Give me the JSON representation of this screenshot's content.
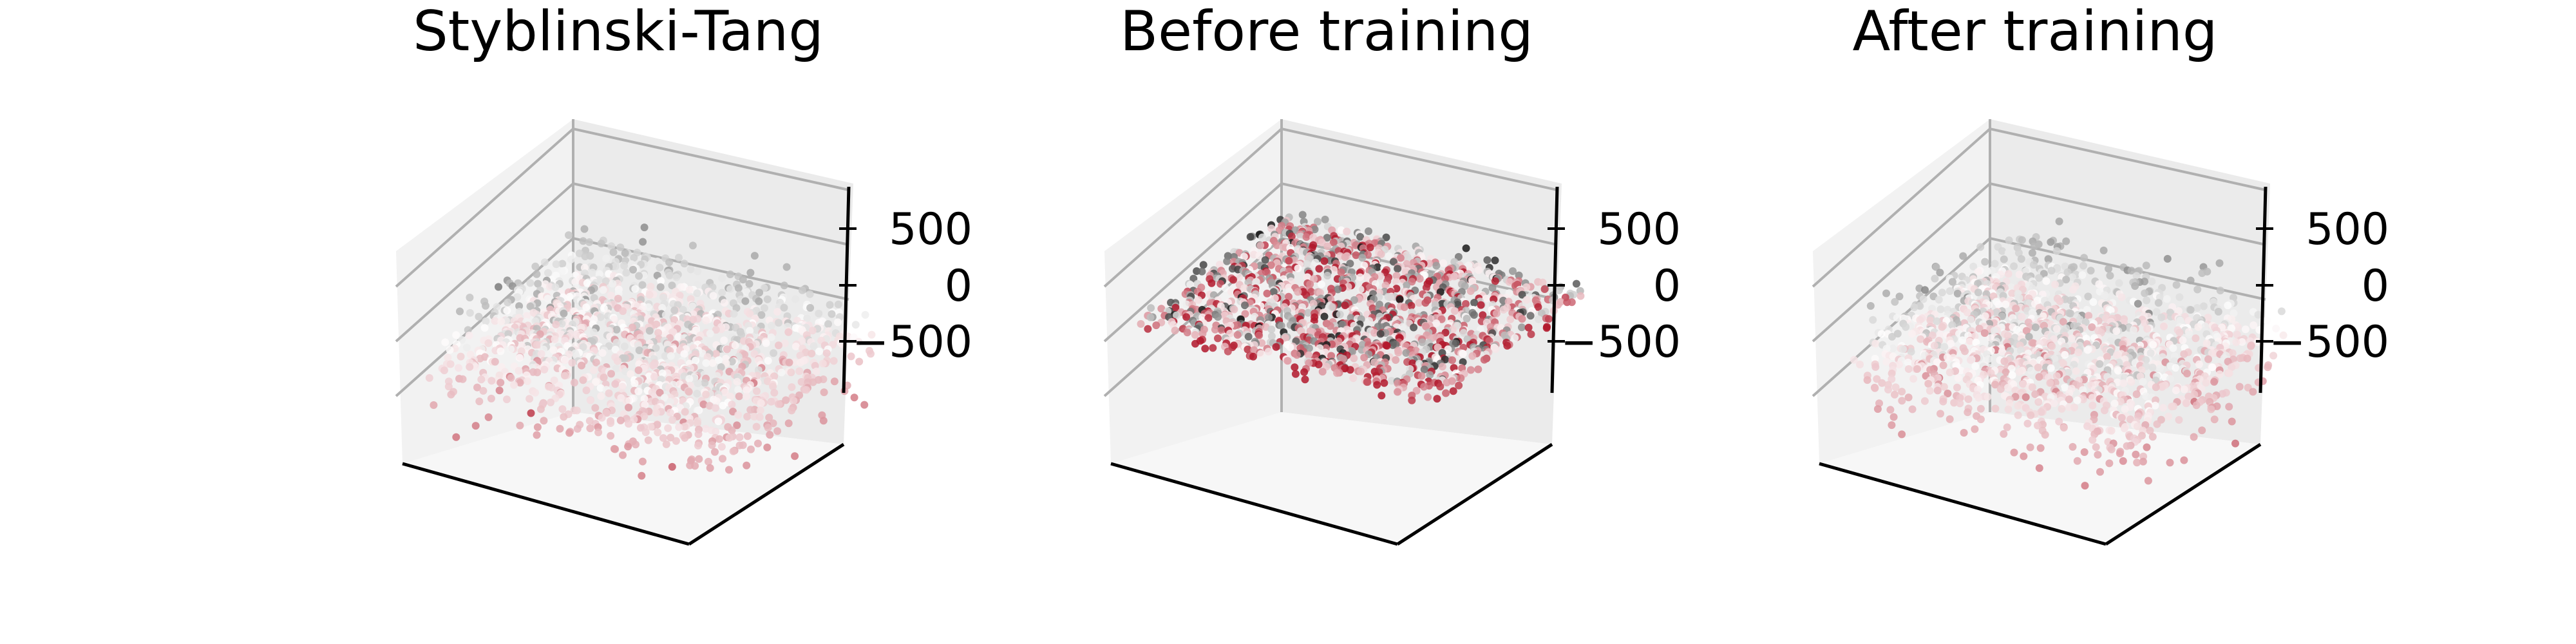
{
  "chart_data": [
    {
      "type": "scatter",
      "projection": "3d",
      "title": "Styblinski-Tang",
      "zticks": [
        500,
        0,
        -500
      ],
      "zlim": [
        -800,
        1100
      ],
      "distribution": "thick-cloud",
      "z_range": [
        -700,
        1000
      ],
      "colormap": "diverging-grey-to-red",
      "points": 1500
    },
    {
      "type": "scatter",
      "projection": "3d",
      "title": "Before training",
      "zticks": [
        500,
        0,
        -500
      ],
      "zlim": [
        -800,
        1100
      ],
      "distribution": "flat-sheet",
      "z_range": [
        -50,
        50
      ],
      "colormap": "diverging-grey-to-red",
      "points": 1500
    },
    {
      "type": "scatter",
      "projection": "3d",
      "title": "After training",
      "zticks": [
        500,
        0,
        -500
      ],
      "zlim": [
        -800,
        1100
      ],
      "distribution": "thick-cloud",
      "z_range": [
        -700,
        1000
      ],
      "colormap": "diverging-grey-to-red",
      "points": 1500
    }
  ],
  "colors": {
    "high": "#1a1a1a",
    "mid": "#ffffff",
    "low": "#b2182b",
    "pane_back": "#ebebeb",
    "pane_side": "#f2f2f2",
    "pane_floor": "#f7f7f7",
    "grid": "#b0b0b0"
  }
}
